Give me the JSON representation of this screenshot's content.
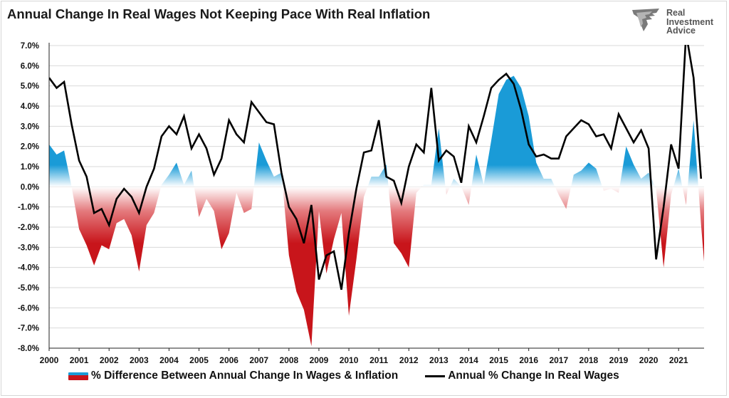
{
  "title": "Annual Change In Real Wages Not Keeping Pace With Real Inflation",
  "logo": {
    "lines": [
      "Real",
      "Investment",
      "Advice"
    ]
  },
  "legend": {
    "area_label": "% Difference Between Annual Change In Wages & Inflation",
    "line_label": "Annual % Change In Real Wages"
  },
  "colors": {
    "positive": "#1a9bd7",
    "negative": "#c8151b",
    "line": "#000000",
    "grid": "#d9d9d9"
  },
  "chart_data": {
    "type": "area",
    "title": "Annual Change In Real Wages Not Keeping Pace With Real Inflation",
    "xlabel": "",
    "ylabel": "",
    "xlim": [
      2000,
      2021.8
    ],
    "ylim": [
      -8,
      7
    ],
    "y_ticks": [
      7,
      6,
      5,
      4,
      3,
      2,
      1,
      0,
      -1,
      -2,
      -3,
      -4,
      -5,
      -6,
      -7,
      -8
    ],
    "y_tick_labels": [
      "7.0%",
      "6.0%",
      "5.0%",
      "4.0%",
      "3.0%",
      "2.0%",
      "1.0%",
      "0.0%",
      "-1.0%",
      "-2.0%",
      "-3.0%",
      "-4.0%",
      "-5.0%",
      "-6.0%",
      "-7.0%",
      "-8.0%"
    ],
    "x_ticks": [
      "2000",
      "2001",
      "2002",
      "2003",
      "2004",
      "2005",
      "2006",
      "2007",
      "2008",
      "2009",
      "2010",
      "2011",
      "2012",
      "2013",
      "2014",
      "2015",
      "2016",
      "2017",
      "2018",
      "2019",
      "2020",
      "2021"
    ],
    "grid": "horizontal",
    "legend_position": "bottom",
    "series": [
      {
        "name": "% Difference Between Annual Change In Wages & Inflation",
        "kind": "area",
        "points": [
          [
            2000.0,
            2.1
          ],
          [
            2000.25,
            1.6
          ],
          [
            2000.5,
            1.8
          ],
          [
            2000.75,
            0.0
          ],
          [
            2001.0,
            -2.1
          ],
          [
            2001.25,
            -2.9
          ],
          [
            2001.5,
            -3.9
          ],
          [
            2001.75,
            -2.9
          ],
          [
            2002.0,
            -3.1
          ],
          [
            2002.25,
            -1.8
          ],
          [
            2002.5,
            -1.6
          ],
          [
            2002.75,
            -2.4
          ],
          [
            2003.0,
            -4.2
          ],
          [
            2003.25,
            -1.9
          ],
          [
            2003.5,
            -1.3
          ],
          [
            2003.75,
            0.1
          ],
          [
            2004.0,
            0.6
          ],
          [
            2004.25,
            1.2
          ],
          [
            2004.5,
            0.1
          ],
          [
            2004.75,
            0.8
          ],
          [
            2005.0,
            -1.5
          ],
          [
            2005.25,
            -0.6
          ],
          [
            2005.5,
            -1.2
          ],
          [
            2005.75,
            -3.1
          ],
          [
            2006.0,
            -2.3
          ],
          [
            2006.25,
            -0.3
          ],
          [
            2006.5,
            -1.3
          ],
          [
            2006.75,
            -1.1
          ],
          [
            2007.0,
            2.2
          ],
          [
            2007.25,
            1.3
          ],
          [
            2007.5,
            0.5
          ],
          [
            2007.75,
            0.7
          ],
          [
            2008.0,
            -3.4
          ],
          [
            2008.25,
            -5.2
          ],
          [
            2008.5,
            -6.1
          ],
          [
            2008.75,
            -7.9
          ],
          [
            2009.0,
            -1.2
          ],
          [
            2009.25,
            -4.3
          ],
          [
            2009.5,
            -2.6
          ],
          [
            2009.75,
            -1.3
          ],
          [
            2010.0,
            -6.4
          ],
          [
            2010.25,
            -3.6
          ],
          [
            2010.5,
            -0.5
          ],
          [
            2010.75,
            0.5
          ],
          [
            2011.0,
            0.5
          ],
          [
            2011.25,
            1.1
          ],
          [
            2011.5,
            -2.8
          ],
          [
            2011.75,
            -3.3
          ],
          [
            2012.0,
            -4.0
          ],
          [
            2012.25,
            -0.3
          ],
          [
            2012.5,
            0.1
          ],
          [
            2012.75,
            0.1
          ],
          [
            2013.0,
            2.9
          ],
          [
            2013.25,
            -0.4
          ],
          [
            2013.5,
            0.4
          ],
          [
            2013.75,
            0.0
          ],
          [
            2014.0,
            -0.9
          ],
          [
            2014.25,
            1.6
          ],
          [
            2014.5,
            0.1
          ],
          [
            2014.75,
            2.3
          ],
          [
            2015.0,
            4.6
          ],
          [
            2015.25,
            5.3
          ],
          [
            2015.5,
            5.5
          ],
          [
            2015.75,
            4.9
          ],
          [
            2016.0,
            3.5
          ],
          [
            2016.25,
            1.2
          ],
          [
            2016.5,
            0.4
          ],
          [
            2016.75,
            0.4
          ],
          [
            2017.0,
            -0.4
          ],
          [
            2017.25,
            -1.1
          ],
          [
            2017.5,
            0.6
          ],
          [
            2017.75,
            0.8
          ],
          [
            2018.0,
            1.2
          ],
          [
            2018.25,
            0.9
          ],
          [
            2018.5,
            -0.2
          ],
          [
            2018.75,
            -0.1
          ],
          [
            2019.0,
            -0.3
          ],
          [
            2019.25,
            2.0
          ],
          [
            2019.5,
            1.1
          ],
          [
            2019.75,
            0.4
          ],
          [
            2020.0,
            0.7
          ],
          [
            2020.25,
            -0.1
          ],
          [
            2020.5,
            -4.0
          ],
          [
            2020.75,
            -0.4
          ],
          [
            2021.0,
            0.9
          ],
          [
            2021.25,
            -0.9
          ],
          [
            2021.5,
            3.3
          ],
          [
            2021.75,
            -1.9
          ],
          [
            2022.0,
            -6.4
          ]
        ]
      },
      {
        "name": "Annual % Change In Real Wages",
        "kind": "line",
        "points": [
          [
            2000.0,
            5.4
          ],
          [
            2000.25,
            4.9
          ],
          [
            2000.5,
            5.2
          ],
          [
            2000.75,
            3.1
          ],
          [
            2001.0,
            1.3
          ],
          [
            2001.25,
            0.5
          ],
          [
            2001.5,
            -1.3
          ],
          [
            2001.75,
            -1.1
          ],
          [
            2002.0,
            -1.9
          ],
          [
            2002.25,
            -0.6
          ],
          [
            2002.5,
            -0.1
          ],
          [
            2002.75,
            -0.5
          ],
          [
            2003.0,
            -1.3
          ],
          [
            2003.25,
            0.0
          ],
          [
            2003.5,
            0.9
          ],
          [
            2003.75,
            2.5
          ],
          [
            2004.0,
            3.0
          ],
          [
            2004.25,
            2.6
          ],
          [
            2004.5,
            3.5
          ],
          [
            2004.75,
            1.9
          ],
          [
            2005.0,
            2.6
          ],
          [
            2005.25,
            1.9
          ],
          [
            2005.5,
            0.6
          ],
          [
            2005.75,
            1.4
          ],
          [
            2006.0,
            3.3
          ],
          [
            2006.25,
            2.6
          ],
          [
            2006.5,
            2.2
          ],
          [
            2006.75,
            4.2
          ],
          [
            2007.0,
            3.7
          ],
          [
            2007.25,
            3.2
          ],
          [
            2007.5,
            3.1
          ],
          [
            2007.75,
            0.7
          ],
          [
            2008.0,
            -1.0
          ],
          [
            2008.25,
            -1.6
          ],
          [
            2008.5,
            -2.8
          ],
          [
            2008.75,
            -0.9
          ],
          [
            2009.0,
            -4.6
          ],
          [
            2009.25,
            -3.4
          ],
          [
            2009.5,
            -3.2
          ],
          [
            2009.75,
            -5.1
          ],
          [
            2010.0,
            -2.3
          ],
          [
            2010.25,
            -0.1
          ],
          [
            2010.5,
            1.7
          ],
          [
            2010.75,
            1.8
          ],
          [
            2011.0,
            3.3
          ],
          [
            2011.25,
            0.5
          ],
          [
            2011.5,
            0.3
          ],
          [
            2011.75,
            -0.8
          ],
          [
            2012.0,
            1.0
          ],
          [
            2012.25,
            2.1
          ],
          [
            2012.5,
            1.7
          ],
          [
            2012.75,
            4.9
          ],
          [
            2013.0,
            1.3
          ],
          [
            2013.25,
            1.8
          ],
          [
            2013.5,
            1.5
          ],
          [
            2013.75,
            0.2
          ],
          [
            2014.0,
            3.0
          ],
          [
            2014.25,
            2.2
          ],
          [
            2014.5,
            3.5
          ],
          [
            2014.75,
            4.9
          ],
          [
            2015.0,
            5.3
          ],
          [
            2015.25,
            5.6
          ],
          [
            2015.5,
            5.1
          ],
          [
            2015.75,
            3.8
          ],
          [
            2016.0,
            2.1
          ],
          [
            2016.25,
            1.5
          ],
          [
            2016.5,
            1.6
          ],
          [
            2016.75,
            1.4
          ],
          [
            2017.0,
            1.4
          ],
          [
            2017.25,
            2.5
          ],
          [
            2017.5,
            2.9
          ],
          [
            2017.75,
            3.3
          ],
          [
            2018.0,
            3.1
          ],
          [
            2018.25,
            2.5
          ],
          [
            2018.5,
            2.6
          ],
          [
            2018.75,
            1.9
          ],
          [
            2019.0,
            3.6
          ],
          [
            2019.25,
            2.9
          ],
          [
            2019.5,
            2.2
          ],
          [
            2019.75,
            2.8
          ],
          [
            2020.0,
            1.9
          ],
          [
            2020.25,
            -3.6
          ],
          [
            2020.5,
            -1.0
          ],
          [
            2020.75,
            2.1
          ],
          [
            2021.0,
            0.9
          ],
          [
            2021.25,
            7.6
          ],
          [
            2021.5,
            5.4
          ],
          [
            2021.75,
            0.4
          ]
        ]
      }
    ]
  }
}
